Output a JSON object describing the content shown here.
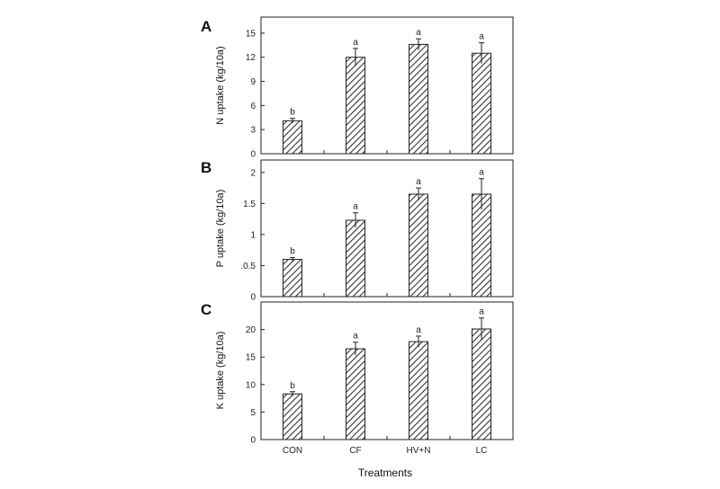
{
  "chart_data": [
    {
      "type": "bar",
      "panel": "A",
      "categories": [
        "CON",
        "CF",
        "HV+N",
        "LC"
      ],
      "values": [
        4.1,
        12.0,
        13.6,
        12.5
      ],
      "errors": [
        0.3,
        1.1,
        0.7,
        1.3
      ],
      "significance": [
        "b",
        "a",
        "a",
        "a"
      ],
      "ylabel": "N uptake (kg/10a)",
      "ylim": [
        0,
        17
      ],
      "yticks": [
        0,
        3,
        6,
        9,
        12,
        15
      ],
      "ytick_labels": [
        "0",
        "3",
        "6",
        "9",
        "12",
        "15"
      ],
      "hatch": "diagonal",
      "grid": false
    },
    {
      "type": "bar",
      "panel": "B",
      "categories": [
        "CON",
        "CF",
        "HV+N",
        "LC"
      ],
      "values": [
        0.6,
        1.23,
        1.65,
        1.65
      ],
      "errors": [
        0.03,
        0.12,
        0.1,
        0.25
      ],
      "significance": [
        "b",
        "a",
        "a",
        "a"
      ],
      "ylabel": "P uptake (kg/10a)",
      "ylim": [
        0,
        2.2
      ],
      "yticks": [
        0,
        0.5,
        1,
        1.5,
        2
      ],
      "ytick_labels": [
        "0",
        ".0.5",
        "1",
        "1.5",
        "2"
      ],
      "hatch": "diagonal",
      "grid": false
    },
    {
      "type": "bar",
      "panel": "C",
      "categories": [
        "CON",
        "CF",
        "HV+N",
        "LC"
      ],
      "values": [
        8.3,
        16.5,
        17.8,
        20.1
      ],
      "errors": [
        0.4,
        1.2,
        1.0,
        2.0
      ],
      "significance": [
        "b",
        "a",
        "a",
        "a"
      ],
      "ylabel": "K uptake (kg/10a)",
      "ylim": [
        0,
        25
      ],
      "yticks": [
        0,
        5,
        10,
        15,
        20
      ],
      "ytick_labels": [
        "0",
        "5",
        "10",
        "15",
        "20"
      ],
      "hatch": "diagonal",
      "grid": false
    }
  ],
  "xlabel": "Treatments",
  "colors": {
    "axis": "#222222",
    "bar_stroke": "#222222",
    "hatch": "#333333",
    "background": "#ffffff"
  }
}
